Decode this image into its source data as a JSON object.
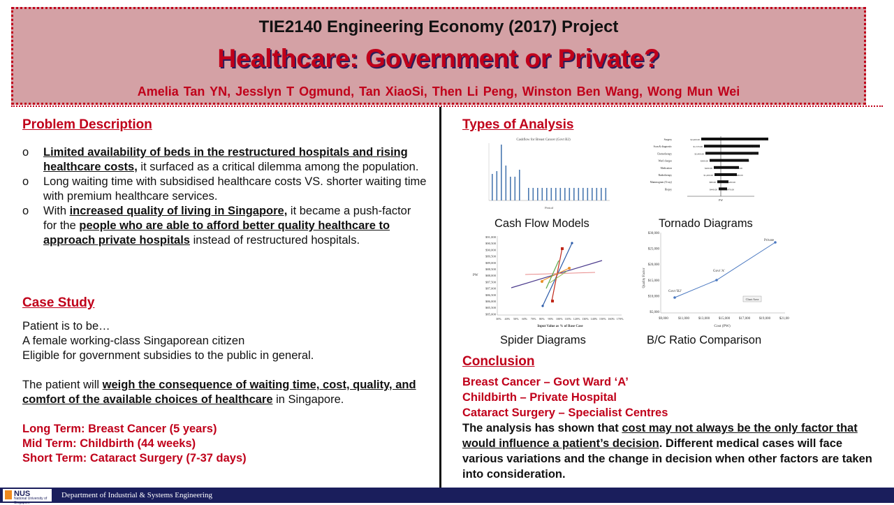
{
  "banner": {
    "course": "TIE2140 Engineering Economy (2017) Project",
    "title": "Healthcare: Government or Private?",
    "authors": "Amelia Tan YN, Jesslyn T Ogmund, Tan XiaoSi, Then Li Peng, Winston Ben Wang, Wong Mun Wei"
  },
  "problem": {
    "heading": "Problem Description",
    "bullet_mark": "o",
    "b1_bold": "Limited availability of beds in the restructured hospitals and rising healthcare costs,",
    "b1_rest": " it surfaced as a critical dilemma among the population.",
    "b2": "Long waiting time with subsidised healthcare costs VS. shorter waiting time with premium healthcare services.",
    "b3_a": "With ",
    "b3_bold1": "increased quality of living in Singapore,",
    "b3_b": " it became a push-factor for the ",
    "b3_bold2": "people who are able to afford better quality healthcare to approach private hospitals",
    "b3_c": " instead of restructured hospitals."
  },
  "case": {
    "heading": "Case Study",
    "l1": "Patient is to be…",
    "l2": "A female working-class Singaporean citizen",
    "l3": "Eligible for government subsidies to the public in general.",
    "p_a": "The patient will ",
    "p_bold": "weigh the consequence of waiting time, cost, quality, and comfort of the available choices of healthcare",
    "p_b": " in Singapore.",
    "long": "Long Term: Breast Cancer (5 years)",
    "mid": "Mid Term: Childbirth (44 weeks)",
    "short": "Short Term: Cataract Surgery (7-37 days)"
  },
  "analysis": {
    "heading": "Types of Analysis",
    "cashflow_caption": "Cash Flow Models",
    "cashflow_title": "Cashflow for Breast Cancer (Govt B2)",
    "cashflow_xlabel": "Period",
    "tornado_caption": "Tornado Diagrams",
    "tornado_rows": [
      {
        "label": "Surgery",
        "lo": "$2,400.00",
        "hi": "$3,750.00"
      },
      {
        "label": "Scan & diagnostic",
        "lo": "$1,725.00",
        "hi": "$1,850.00"
      },
      {
        "label": "Chemotherapy",
        "lo": "$2,400.00",
        "hi": "$2,600.00"
      },
      {
        "label": "Ward charges",
        "lo": "$300.00",
        "hi": "$428.00"
      },
      {
        "label": "Medication",
        "lo": "$200.00",
        "hi": "$300.00"
      },
      {
        "label": "Radiotherapy",
        "lo": "$1,200.00",
        "hi": "$1,400.00"
      },
      {
        "label": "Mammogram (X-ray)",
        "lo": "$80.00",
        "hi": "$200.00"
      },
      {
        "label": "Biopsy",
        "lo": "$440.00",
        "hi": "$470.00"
      }
    ],
    "tornado_axis": "PW",
    "spider_caption": "Spider Diagrams",
    "spider_yticks": [
      "$91,000",
      "$90,500",
      "$90,000",
      "$89,500",
      "$89,000",
      "$88,500",
      "$88,000",
      "$87,500",
      "$87,000",
      "$86,500",
      "$86,000",
      "$85,500",
      "$85,000"
    ],
    "spider_ylabel": "PW",
    "spider_xticks": [
      "30%",
      "40%",
      "50%",
      "60%",
      "70%",
      "80%",
      "90%",
      "100%",
      "110%",
      "120%",
      "130%",
      "140%",
      "150%",
      "160%",
      "170%"
    ],
    "spider_xlabel": "Input Value as % of Base Case",
    "bc_caption": "B/C Ratio Comparison",
    "bc_yticks": [
      "$30,000",
      "$25,000",
      "$20,000",
      "$15,000",
      "$10,000",
      "$5,000"
    ],
    "bc_ylabel": "Quality Factor",
    "bc_xticks": [
      "$9,000",
      "$11,000",
      "$13,000",
      "$15,000",
      "$17,000",
      "$19,000",
      "$21,000"
    ],
    "bc_xlabel": "Cost (PW)",
    "bc_points": [
      "Govt 'B2'",
      "Govt 'A'",
      "Private"
    ],
    "bc_tooltip": "Chart Area"
  },
  "conclusion": {
    "heading": "Conclusion",
    "r1": "Breast Cancer – Govt Ward ‘A’",
    "r2": "Childbirth – Private Hospital",
    "r3": "Cataract Surgery – Specialist Centres",
    "t_a": "The analysis has shown that ",
    "t_u": "cost may not always be the only factor that would influence a patient’s decision",
    "t_b": ". Different medical cases will face various variations and the change in decision when other factors are taken into consideration."
  },
  "footer": {
    "logo": "NUS",
    "logo_sub": "National University of Singapore",
    "department": "Department of Industrial & Systems Engineering"
  },
  "colors": {
    "accent": "#c0001a",
    "banner": "#d4a1a5",
    "footer": "#1a1e5c",
    "bar": "#4a78b0"
  }
}
